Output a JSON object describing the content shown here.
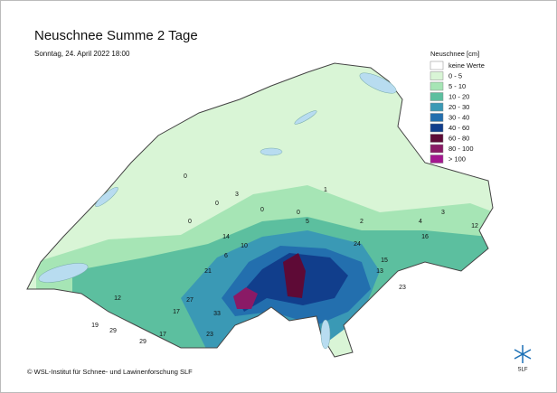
{
  "header": {
    "title": "Neuschnee Summe 2 Tage",
    "subtitle": "Sonntag, 24. April 2022 18:00"
  },
  "legend": {
    "title": "Neuschnee [cm]",
    "items": [
      {
        "label": "keine Werte",
        "color": "#ffffff"
      },
      {
        "label": "0 - 5",
        "color": "#d9f5d6"
      },
      {
        "label": "5 - 10",
        "color": "#a6e5b5"
      },
      {
        "label": "10 - 20",
        "color": "#5cbf9f"
      },
      {
        "label": "20 - 30",
        "color": "#3a99b5"
      },
      {
        "label": "30 - 40",
        "color": "#236fae"
      },
      {
        "label": "40 - 60",
        "color": "#113e8c"
      },
      {
        "label": "60 - 80",
        "color": "#5e0a36"
      },
      {
        "label": "80 - 100",
        "color": "#8a1a66"
      },
      {
        "label": "> 100",
        "color": "#a4168f"
      }
    ]
  },
  "stations": [
    "0",
    "3",
    "0",
    "0",
    "0",
    "1",
    "0",
    "3",
    "5",
    "2",
    "4",
    "12",
    "16",
    "14",
    "24",
    "15",
    "13",
    "23",
    "21",
    "33",
    "29",
    "17",
    "19",
    "23",
    "12",
    "17",
    "29",
    "6",
    "10",
    "27"
  ],
  "footer": "© WSL-Institut für Schnee- und Lawinenforschung SLF",
  "logo": "SLF"
}
